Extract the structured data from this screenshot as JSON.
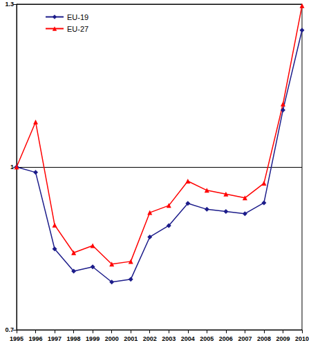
{
  "chart_data": {
    "type": "line",
    "categories": [
      "1995",
      "1996",
      "1997",
      "1998",
      "1999",
      "2000",
      "2001",
      "2002",
      "2003",
      "2004",
      "2005",
      "2006",
      "2007",
      "2008",
      "2009",
      "2010"
    ],
    "series": [
      {
        "name": "EU-19",
        "color": "#1c1c8a",
        "marker": "diamond",
        "values": [
          1.0,
          0.99,
          0.849,
          0.808,
          0.816,
          0.788,
          0.793,
          0.871,
          0.892,
          0.933,
          0.922,
          0.918,
          0.914,
          0.934,
          1.105,
          1.252
        ]
      },
      {
        "name": "EU-27",
        "color": "#ff0000",
        "marker": "triangle",
        "values": [
          1.0,
          1.083,
          0.893,
          0.842,
          0.855,
          0.821,
          0.826,
          0.916,
          0.929,
          0.974,
          0.957,
          0.95,
          0.943,
          0.97,
          1.116,
          1.297
        ]
      }
    ],
    "ylim": [
      0.7,
      1.3
    ],
    "yticks": [
      0.7,
      1,
      1.3
    ],
    "grid": true,
    "legend": "upper left"
  }
}
